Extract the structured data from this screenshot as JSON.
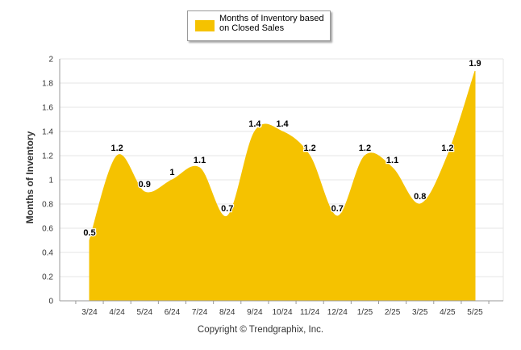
{
  "legend": {
    "label": "Months of Inventory based on Closed Sales",
    "color": "#F5C200"
  },
  "copyright": "Copyright © Trendgraphix, Inc.",
  "chart_data": {
    "type": "area",
    "title": "",
    "xlabel": "",
    "ylabel": "Months of Inventory",
    "ylim": [
      0,
      2
    ],
    "yticks": [
      "0",
      "0.2",
      "0.4",
      "0.6",
      "0.8",
      "1",
      "1.2",
      "1.4",
      "1.6",
      "1.8",
      "2"
    ],
    "grid": true,
    "legend_position": "top-center",
    "categories": [
      "3/24",
      "4/24",
      "5/24",
      "6/24",
      "7/24",
      "8/24",
      "9/24",
      "10/24",
      "11/24",
      "12/24",
      "1/25",
      "2/25",
      "3/25",
      "4/25",
      "5/25"
    ],
    "series": [
      {
        "name": "Months of Inventory based on Closed Sales",
        "color": "#F5C200",
        "values": [
          0.5,
          1.2,
          0.9,
          1,
          1.1,
          0.7,
          1.4,
          1.4,
          1.2,
          0.7,
          1.2,
          1.1,
          0.8,
          1.2,
          1.9
        ],
        "labels": [
          "0.5",
          "1.2",
          "0.9",
          "1",
          "1.1",
          "0.7",
          "1.4",
          "1.4",
          "1.2",
          "0.7",
          "1.2",
          "1.1",
          "0.8",
          "1.2",
          "1.9"
        ]
      }
    ]
  }
}
